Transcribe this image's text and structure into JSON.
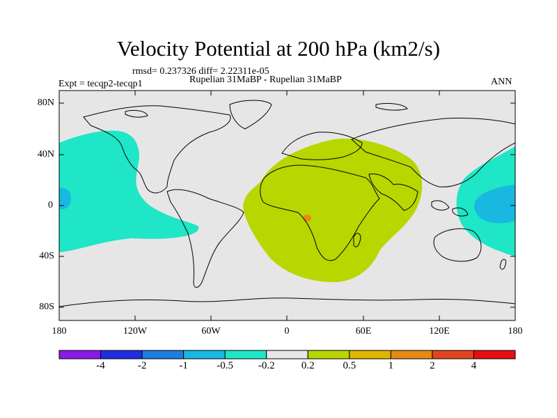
{
  "title": "Velocity Potential at 200 hPa (km2/s)",
  "stats": "rmsd= 0.237326 diff= 2.22311e-05",
  "case_label": "Rupelian  31MaBP - Rupelian  31MaBP",
  "expt_label": "Expt = tecqp2-tecqp1",
  "season_label": "ANN",
  "map": {
    "lat_ticks": [
      "80N",
      "40N",
      "0",
      "40S",
      "80S"
    ],
    "lon_ticks": [
      "180",
      "120W",
      "60W",
      "0",
      "60E",
      "120E",
      "180"
    ],
    "land_color": "#e6e6e6"
  },
  "colorbar": {
    "colors": [
      "#8a1be6",
      "#1f2ee0",
      "#1f7de0",
      "#19b8e0",
      "#1ee6c6",
      "#e6e6e6",
      "#b8d600",
      "#e0b600",
      "#e68a12",
      "#e0451e",
      "#e80d12"
    ],
    "labels": [
      "-4",
      "-2",
      "-1",
      "-0.5",
      "-0.2",
      "0.2",
      "0.5",
      "1",
      "2",
      "4"
    ]
  },
  "field_colors": {
    "negative_weak": "#1ee6c6",
    "negative_moderate": "#19b8e0",
    "positive_weak": "#b8d600",
    "positive_moderate": "#e68a12"
  }
}
